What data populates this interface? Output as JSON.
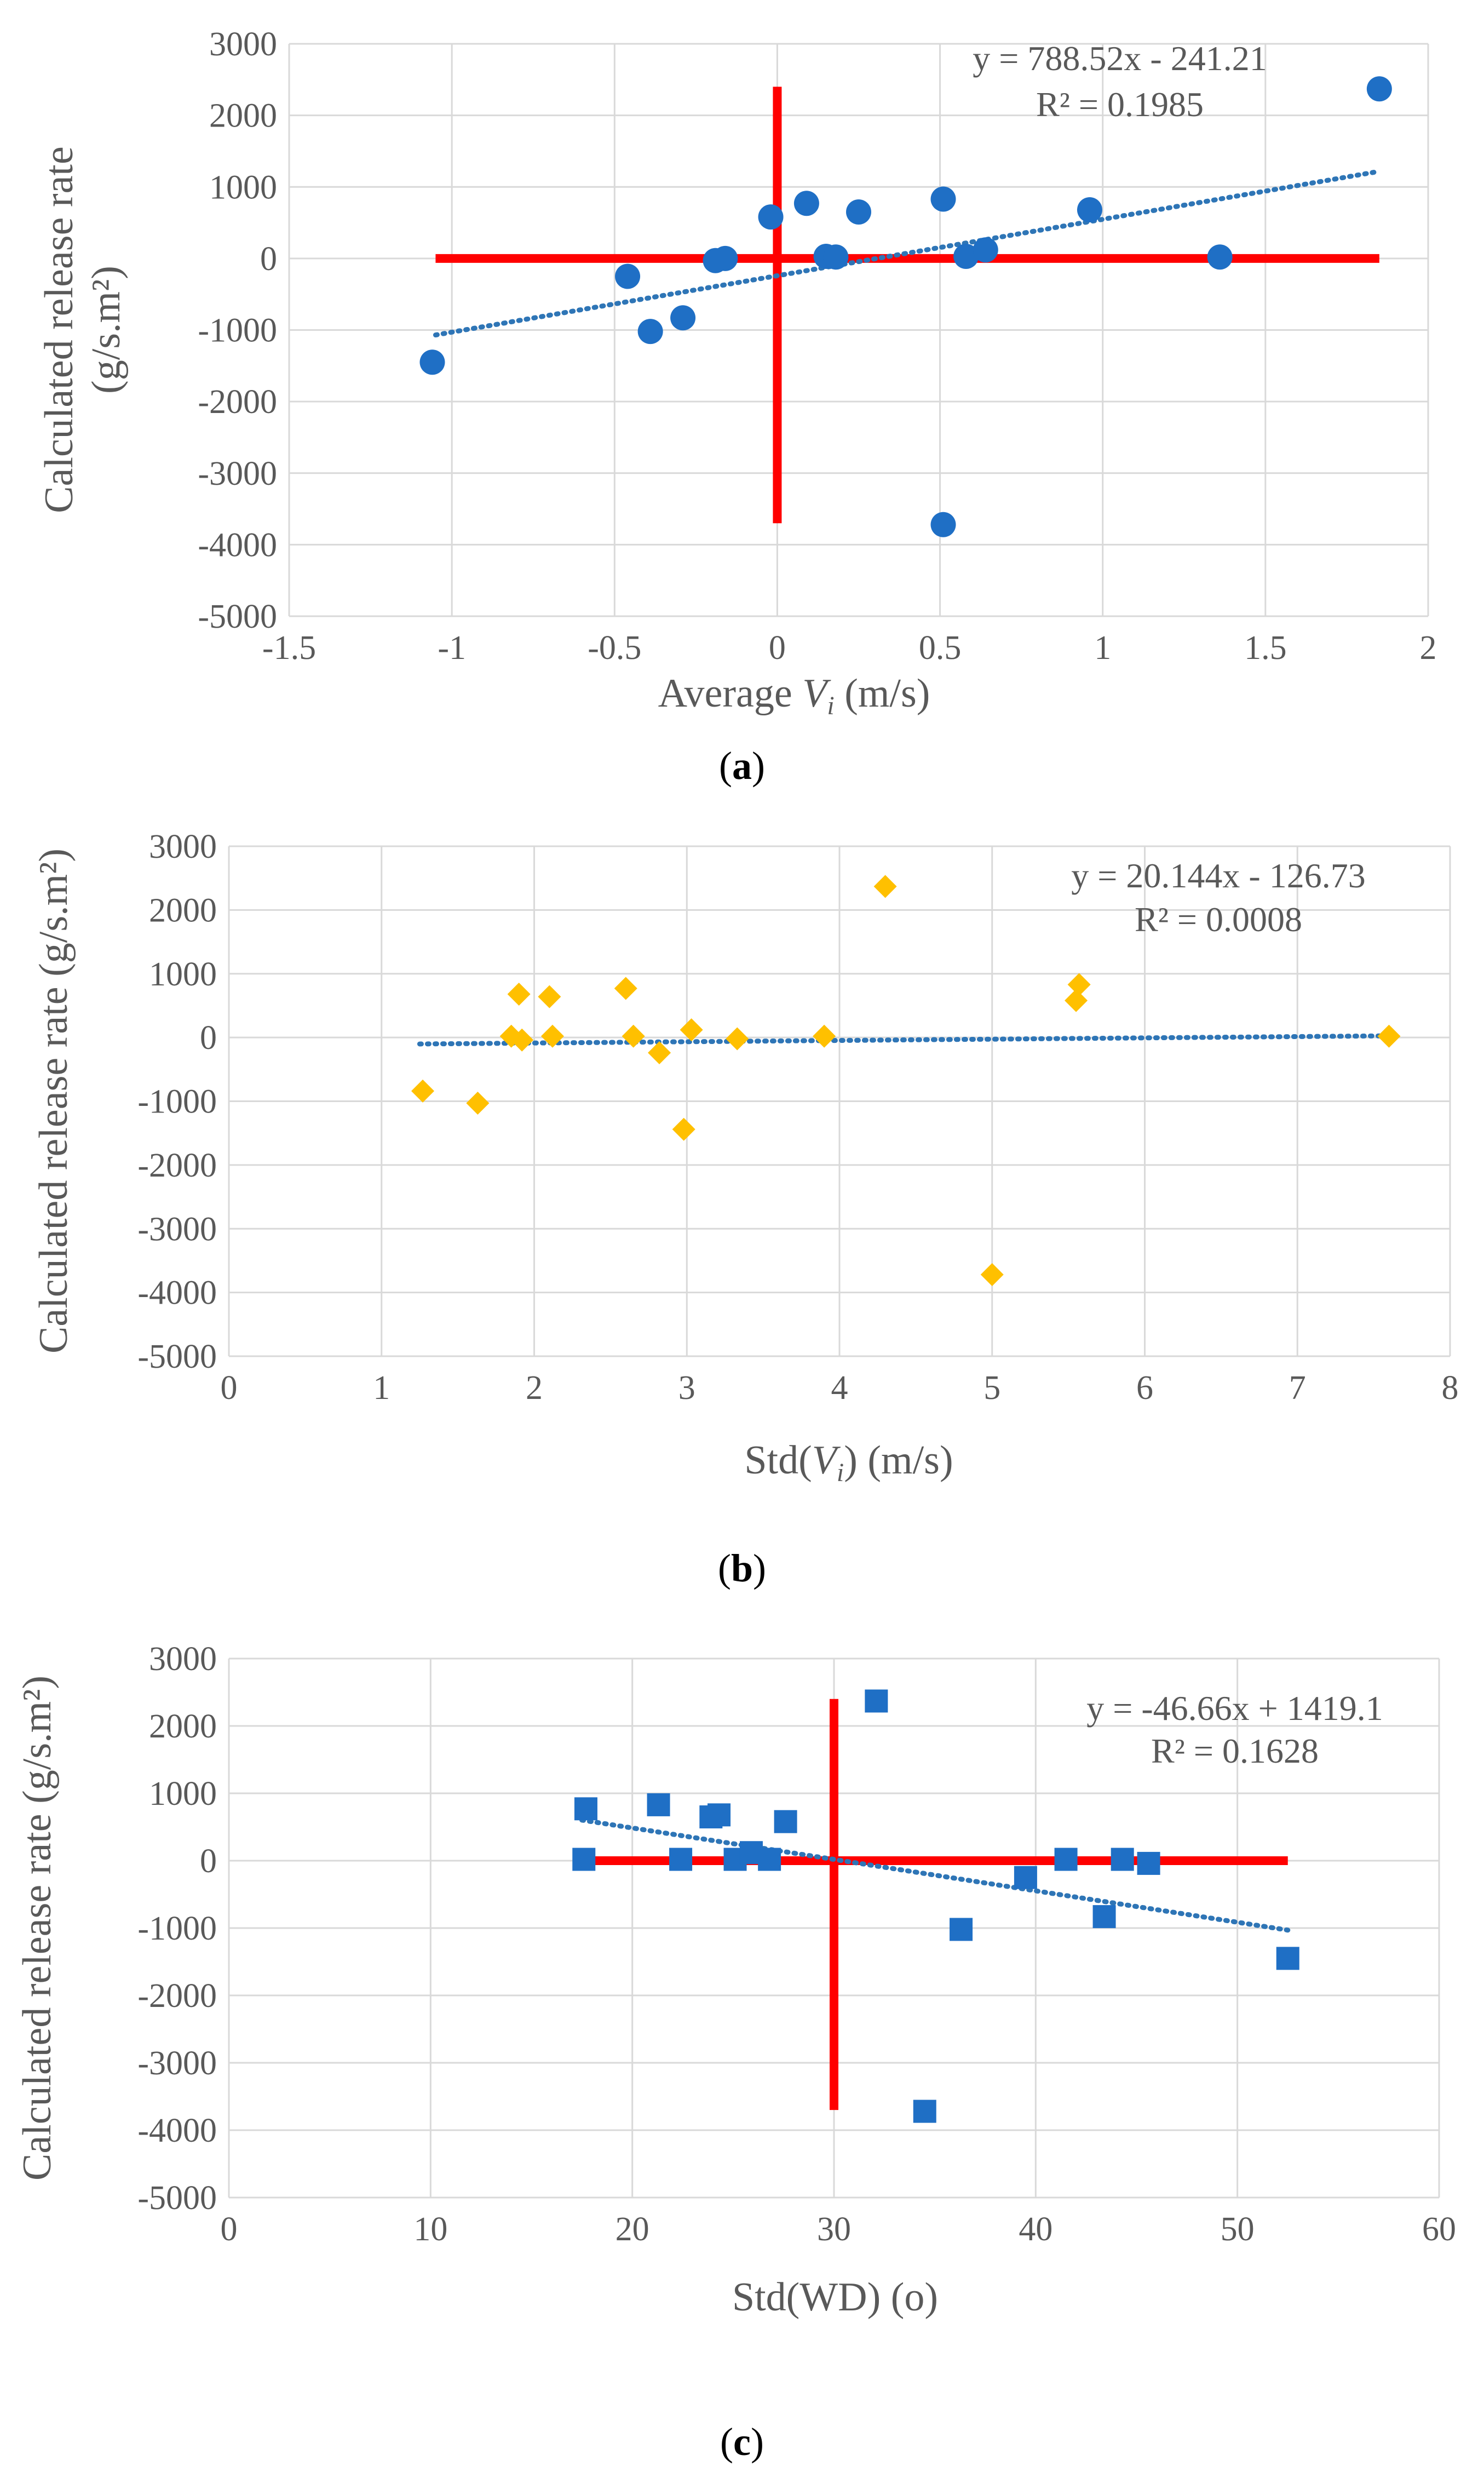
{
  "colors": {
    "trendline": "#2e75b6",
    "refline": "#ff0000",
    "grid": "#d9d9d9",
    "text": "#595959"
  },
  "chart_data": [
    {
      "id": "a",
      "type": "scatter",
      "caption": "a",
      "ylabel_line1": "Calculated release rate",
      "ylabel_line2": "(g/s.m²)",
      "xlabel_prefix": "Average ",
      "xlabel_var": "V",
      "xlabel_sub": "i",
      "xlabel_suffix": " (m/s)",
      "equation": "y = 788.52x - 241.21",
      "r2": "R² = 0.1985",
      "xlim": [
        -1.5,
        2
      ],
      "ylim": [
        -5000,
        3000
      ],
      "xticks": [
        -1.5,
        -1,
        -0.5,
        0,
        0.5,
        1,
        1.5,
        2
      ],
      "xtick_labels": [
        "-1.5",
        "-1",
        "-0.5",
        "0",
        "0.5",
        "1",
        "1.5",
        "2"
      ],
      "yticks": [
        -5000,
        -4000,
        -3000,
        -2000,
        -1000,
        0,
        1000,
        2000,
        3000
      ],
      "ytick_labels": [
        "-5000",
        "-4000",
        "-3000",
        "-2000",
        "-1000",
        "0",
        "1000",
        "2000",
        "3000"
      ],
      "marker": "circle",
      "marker_color": "#1f6fc5",
      "trend": {
        "slope": 788.52,
        "intercept": -241.21,
        "x_range": [
          -1.05,
          1.85
        ]
      },
      "reflines": {
        "vertical": {
          "x": 0,
          "y": [
            -3700,
            2400
          ]
        },
        "horizontal": {
          "y": 0,
          "x": [
            -1.05,
            1.85
          ]
        }
      },
      "points": [
        [
          -1.06,
          -1450
        ],
        [
          -0.46,
          -250
        ],
        [
          -0.39,
          -1020
        ],
        [
          -0.29,
          -830
        ],
        [
          -0.19,
          -30
        ],
        [
          -0.16,
          0
        ],
        [
          -0.02,
          580
        ],
        [
          0.09,
          770
        ],
        [
          0.15,
          30
        ],
        [
          0.18,
          20
        ],
        [
          0.25,
          650
        ],
        [
          0.51,
          830
        ],
        [
          0.51,
          -3720
        ],
        [
          0.58,
          30
        ],
        [
          0.64,
          120
        ],
        [
          0.96,
          680
        ],
        [
          1.36,
          20
        ],
        [
          1.85,
          2370
        ]
      ]
    },
    {
      "id": "b",
      "type": "scatter",
      "caption": "b",
      "ylabel_line1": "Calculated release rate (g/s.m²)",
      "xlabel_prefix": "Std(",
      "xlabel_var": "V",
      "xlabel_sub": "i",
      "xlabel_suffix": ") (m/s)",
      "equation": "y = 20.144x - 126.73",
      "r2": "R² = 0.0008",
      "xlim": [
        0,
        8
      ],
      "ylim": [
        -5000,
        3000
      ],
      "xticks": [
        0,
        1,
        2,
        3,
        4,
        5,
        6,
        7,
        8
      ],
      "xtick_labels": [
        "0",
        "1",
        "2",
        "3",
        "4",
        "5",
        "6",
        "7",
        "8"
      ],
      "yticks": [
        -5000,
        -4000,
        -3000,
        -2000,
        -1000,
        0,
        1000,
        2000,
        3000
      ],
      "ytick_labels": [
        "-5000",
        "-4000",
        "-3000",
        "-2000",
        "-1000",
        "0",
        "1000",
        "2000",
        "3000"
      ],
      "marker": "diamond",
      "marker_color": "#ffc000",
      "trend": {
        "slope": 20.144,
        "intercept": -126.73,
        "x_range": [
          1.25,
          7.6
        ]
      },
      "points": [
        [
          1.27,
          -840
        ],
        [
          1.63,
          -1030
        ],
        [
          1.85,
          20
        ],
        [
          1.9,
          680
        ],
        [
          1.92,
          -40
        ],
        [
          2.1,
          640
        ],
        [
          2.12,
          20
        ],
        [
          2.6,
          770
        ],
        [
          2.65,
          20
        ],
        [
          2.82,
          -240
        ],
        [
          2.98,
          -1440
        ],
        [
          3.03,
          120
        ],
        [
          3.33,
          -20
        ],
        [
          3.9,
          20
        ],
        [
          4.3,
          2370
        ],
        [
          5.0,
          -3720
        ],
        [
          5.55,
          580
        ],
        [
          5.57,
          830
        ],
        [
          7.6,
          20
        ]
      ]
    },
    {
      "id": "c",
      "type": "scatter",
      "caption": "c",
      "ylabel_line1": "Calculated release rate (g/s.m²)",
      "xlabel_prefix": "Std(WD) (o)",
      "xlabel_var": "",
      "xlabel_sub": "",
      "xlabel_suffix": "",
      "equation": "y = -46.66x + 1419.1",
      "r2": "R² = 0.1628",
      "xlim": [
        0,
        60
      ],
      "ylim": [
        -5000,
        3000
      ],
      "xticks": [
        0,
        10,
        20,
        30,
        40,
        50,
        60
      ],
      "xtick_labels": [
        "0",
        "10",
        "20",
        "30",
        "40",
        "50",
        "60"
      ],
      "yticks": [
        -5000,
        -4000,
        -3000,
        -2000,
        -1000,
        0,
        1000,
        2000,
        3000
      ],
      "ytick_labels": [
        "-5000",
        "-4000",
        "-3000",
        "-2000",
        "-1000",
        "0",
        "1000",
        "2000",
        "3000"
      ],
      "marker": "square",
      "marker_color": "#1f6fc5",
      "trend": {
        "slope": -46.66,
        "intercept": 1419.1,
        "x_range": [
          17.5,
          52.5
        ]
      },
      "reflines": {
        "vertical": {
          "x": 30,
          "y": [
            -3700,
            2400
          ]
        },
        "horizontal": {
          "y": 0,
          "x": [
            17.5,
            52.5
          ]
        }
      },
      "points": [
        [
          17.6,
          20
        ],
        [
          17.7,
          770
        ],
        [
          21.3,
          830
        ],
        [
          22.4,
          20
        ],
        [
          23.9,
          650
        ],
        [
          24.3,
          680
        ],
        [
          25.1,
          20
        ],
        [
          25.9,
          120
        ],
        [
          26.8,
          20
        ],
        [
          27.6,
          580
        ],
        [
          32.1,
          2370
        ],
        [
          34.5,
          -3720
        ],
        [
          36.3,
          -1020
        ],
        [
          39.5,
          -250
        ],
        [
          41.5,
          20
        ],
        [
          43.4,
          -830
        ],
        [
          44.3,
          20
        ],
        [
          45.6,
          -40
        ],
        [
          52.5,
          -1450
        ]
      ]
    }
  ]
}
